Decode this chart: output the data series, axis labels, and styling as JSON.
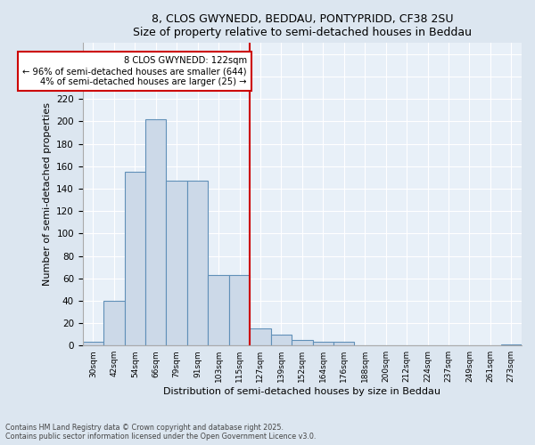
{
  "title1": "8, CLOS GWYNEDD, BEDDAU, PONTYPRIDD, CF38 2SU",
  "title2": "Size of property relative to semi-detached houses in Beddau",
  "xlabel": "Distribution of semi-detached houses by size in Beddau",
  "ylabel": "Number of semi-detached properties",
  "categories": [
    "30sqm",
    "42sqm",
    "54sqm",
    "66sqm",
    "79sqm",
    "91sqm",
    "103sqm",
    "115sqm",
    "127sqm",
    "139sqm",
    "152sqm",
    "164sqm",
    "176sqm",
    "188sqm",
    "200sqm",
    "212sqm",
    "224sqm",
    "237sqm",
    "249sqm",
    "261sqm",
    "273sqm"
  ],
  "values": [
    3,
    40,
    155,
    202,
    147,
    147,
    63,
    63,
    15,
    10,
    5,
    3,
    3,
    0,
    0,
    0,
    0,
    0,
    0,
    0,
    1
  ],
  "bar_color": "#ccd9e8",
  "bar_edge_color": "#6090b8",
  "vline_x_index": 7.5,
  "annotation_title": "8 CLOS GWYNEDD: 122sqm",
  "annotation_line1": "← 96% of semi-detached houses are smaller (644)",
  "annotation_line2": "4% of semi-detached houses are larger (25) →",
  "annotation_box_color": "#ffffff",
  "annotation_box_edge": "#cc0000",
  "vline_color": "#cc0000",
  "footer1": "Contains HM Land Registry data © Crown copyright and database right 2025.",
  "footer2": "Contains public sector information licensed under the Open Government Licence v3.0.",
  "ylim": [
    0,
    270
  ],
  "bg_color": "#dce6f0",
  "plot_bg_color": "#e8f0f8"
}
